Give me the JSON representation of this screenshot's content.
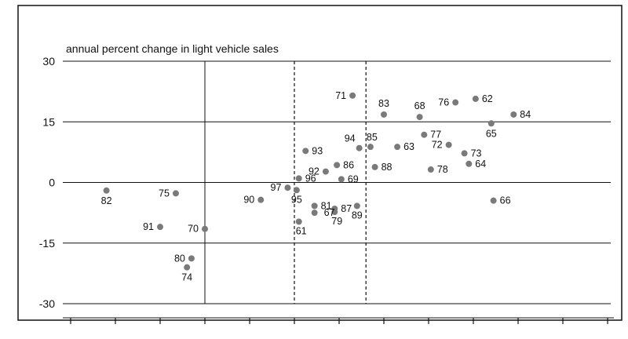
{
  "chart_data": {
    "type": "scatter",
    "title": "",
    "subtitle": "annual percent change in light vehicle sales",
    "xlabel": "",
    "ylabel": "",
    "ylim": [
      -30,
      30
    ],
    "y_ticks": [
      30,
      15,
      0,
      -15,
      -30
    ],
    "y_tick_labels": [
      "30",
      "15",
      "0",
      "-15",
      "-30"
    ],
    "x_tick_count": 13,
    "grid": "horizontal gridlines at each y tick",
    "reference_lines": [
      {
        "style": "solid",
        "x_tick_index": 3
      },
      {
        "style": "dashed",
        "x_tick_index": 5
      },
      {
        "style": "dashed",
        "x_tick_index": 6.6
      }
    ],
    "points": [
      {
        "label": "82",
        "x": 0.8,
        "y": -2
      },
      {
        "label": "75",
        "x": 2.35,
        "y": -2.7
      },
      {
        "label": "91",
        "x": 2.0,
        "y": -11
      },
      {
        "label": "70",
        "x": 3.0,
        "y": -11.5
      },
      {
        "label": "80",
        "x": 2.7,
        "y": -18.8
      },
      {
        "label": "74",
        "x": 2.6,
        "y": -21
      },
      {
        "label": "90",
        "x": 4.25,
        "y": -4.3
      },
      {
        "label": "97",
        "x": 4.85,
        "y": -1.3
      },
      {
        "label": "95",
        "x": 5.05,
        "y": -1.9
      },
      {
        "label": "96",
        "x": 5.1,
        "y": 1
      },
      {
        "label": "93",
        "x": 5.25,
        "y": 7.8
      },
      {
        "label": "81",
        "x": 5.45,
        "y": -5.8
      },
      {
        "label": "67",
        "x": 5.45,
        "y": -7.5
      },
      {
        "label": "61",
        "x": 5.1,
        "y": -9.7
      },
      {
        "label": "92",
        "x": 5.7,
        "y": 2.7
      },
      {
        "label": "86",
        "x": 5.95,
        "y": 4.3
      },
      {
        "label": "69",
        "x": 6.05,
        "y": 0.8
      },
      {
        "label": "87",
        "x": 5.9,
        "y": -6.5
      },
      {
        "label": "79",
        "x": 5.9,
        "y": -7.3
      },
      {
        "label": "89",
        "x": 6.4,
        "y": -5.8
      },
      {
        "label": "94",
        "x": 6.45,
        "y": 8.5
      },
      {
        "label": "85",
        "x": 6.7,
        "y": 8.8
      },
      {
        "label": "88",
        "x": 6.8,
        "y": 3.8
      },
      {
        "label": "71",
        "x": 6.3,
        "y": 21.5
      },
      {
        "label": "83",
        "x": 7.0,
        "y": 16.8
      },
      {
        "label": "63",
        "x": 7.3,
        "y": 8.8
      },
      {
        "label": "68",
        "x": 7.8,
        "y": 16.2
      },
      {
        "label": "77",
        "x": 7.9,
        "y": 11.8
      },
      {
        "label": "78",
        "x": 8.05,
        "y": 3.2
      },
      {
        "label": "72",
        "x": 8.45,
        "y": 9.3
      },
      {
        "label": "76",
        "x": 8.6,
        "y": 19.8
      },
      {
        "label": "73",
        "x": 8.8,
        "y": 7.2
      },
      {
        "label": "64",
        "x": 8.9,
        "y": 4.6
      },
      {
        "label": "62",
        "x": 9.05,
        "y": 20.7
      },
      {
        "label": "65",
        "x": 9.4,
        "y": 14.6
      },
      {
        "label": "84",
        "x": 9.9,
        "y": 16.8
      },
      {
        "label": "66",
        "x": 9.45,
        "y": -4.5
      }
    ]
  }
}
